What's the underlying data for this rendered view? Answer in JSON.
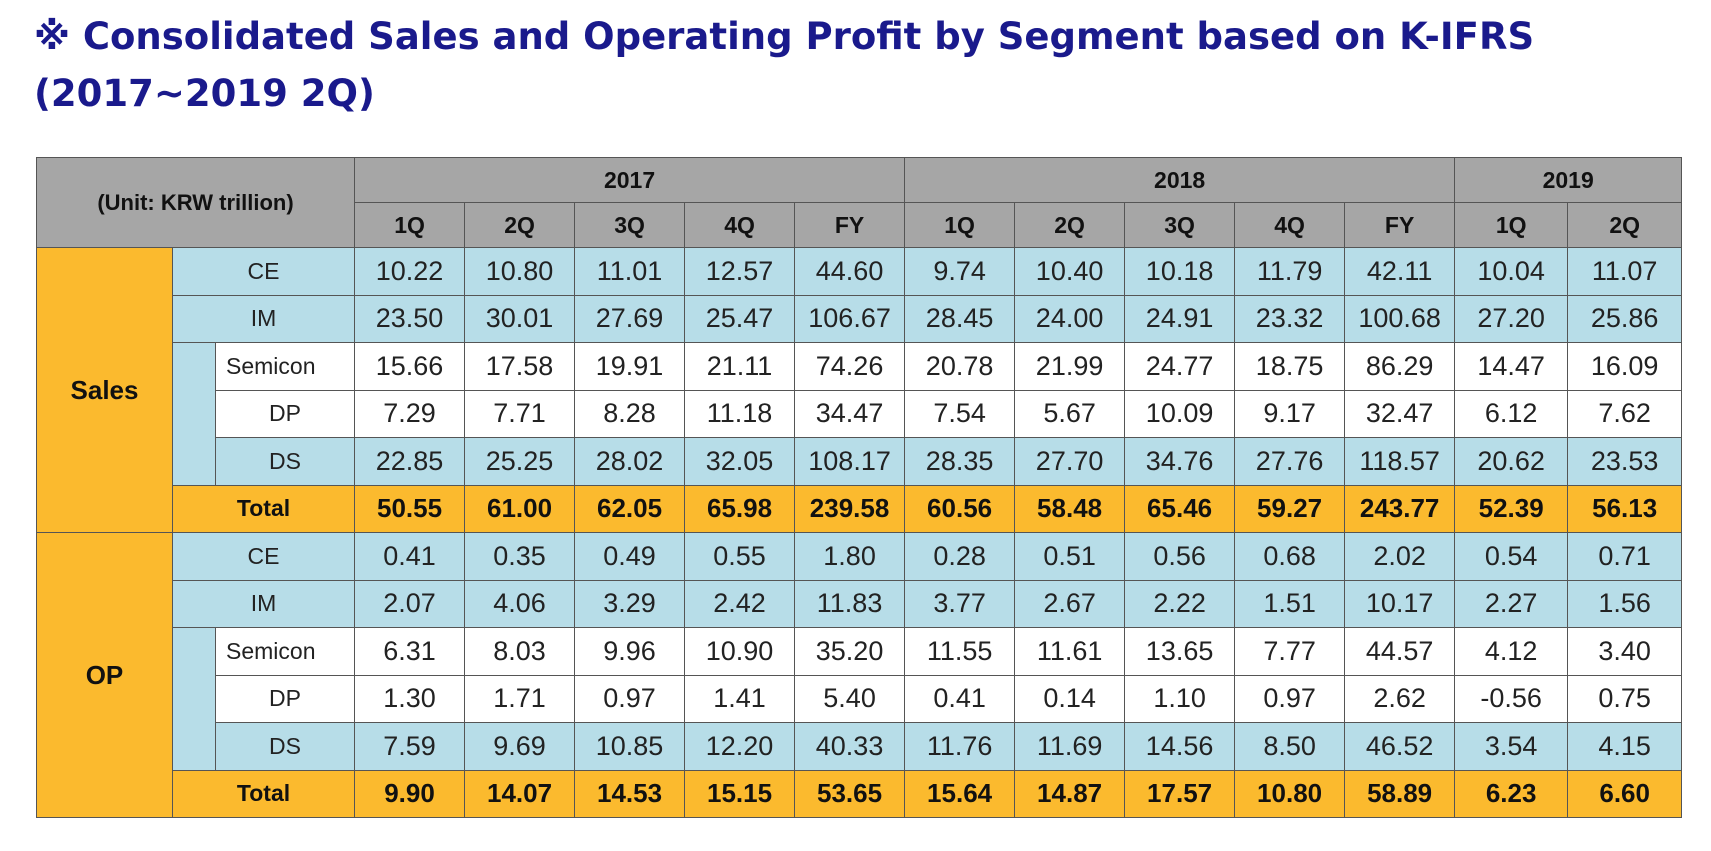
{
  "title": "※ Consolidated Sales and Operating Profit by Segment based on K-IFRS (2017~2019 2Q)",
  "table": {
    "unit_label": "(Unit: KRW trillion)",
    "years": [
      {
        "label": "2017",
        "span": 5
      },
      {
        "label": "2018",
        "span": 5
      },
      {
        "label": "2019",
        "span": 2
      }
    ],
    "quarters": [
      "1Q",
      "2Q",
      "3Q",
      "4Q",
      "FY",
      "1Q",
      "2Q",
      "3Q",
      "4Q",
      "FY",
      "1Q",
      "2Q"
    ],
    "groups": [
      {
        "label": "Sales",
        "rows": [
          {
            "segment": "CE",
            "kind": "main",
            "values": [
              "10.22",
              "10.80",
              "11.01",
              "12.57",
              "44.60",
              "9.74",
              "10.40",
              "10.18",
              "11.79",
              "42.11",
              "10.04",
              "11.07"
            ]
          },
          {
            "segment": "IM",
            "kind": "main",
            "values": [
              "23.50",
              "30.01",
              "27.69",
              "25.47",
              "106.67",
              "28.45",
              "24.00",
              "24.91",
              "23.32",
              "100.68",
              "27.20",
              "25.86"
            ]
          },
          {
            "segment": "Semicon",
            "kind": "sub",
            "values": [
              "15.66",
              "17.58",
              "19.91",
              "21.11",
              "74.26",
              "20.78",
              "21.99",
              "24.77",
              "18.75",
              "86.29",
              "14.47",
              "16.09"
            ]
          },
          {
            "segment": "DP",
            "kind": "sub",
            "values": [
              "7.29",
              "7.71",
              "8.28",
              "11.18",
              "34.47",
              "7.54",
              "5.67",
              "10.09",
              "9.17",
              "32.47",
              "6.12",
              "7.62"
            ]
          },
          {
            "segment": "DS",
            "kind": "ds",
            "values": [
              "22.85",
              "25.25",
              "28.02",
              "32.05",
              "108.17",
              "28.35",
              "27.70",
              "34.76",
              "27.76",
              "118.57",
              "20.62",
              "23.53"
            ]
          },
          {
            "segment": "Total",
            "kind": "total",
            "values": [
              "50.55",
              "61.00",
              "62.05",
              "65.98",
              "239.58",
              "60.56",
              "58.48",
              "65.46",
              "59.27",
              "243.77",
              "52.39",
              "56.13"
            ]
          }
        ]
      },
      {
        "label": "OP",
        "rows": [
          {
            "segment": "CE",
            "kind": "main",
            "values": [
              "0.41",
              "0.35",
              "0.49",
              "0.55",
              "1.80",
              "0.28",
              "0.51",
              "0.56",
              "0.68",
              "2.02",
              "0.54",
              "0.71"
            ]
          },
          {
            "segment": "IM",
            "kind": "main",
            "values": [
              "2.07",
              "4.06",
              "3.29",
              "2.42",
              "11.83",
              "3.77",
              "2.67",
              "2.22",
              "1.51",
              "10.17",
              "2.27",
              "1.56"
            ]
          },
          {
            "segment": "Semicon",
            "kind": "sub",
            "values": [
              "6.31",
              "8.03",
              "9.96",
              "10.90",
              "35.20",
              "11.55",
              "11.61",
              "13.65",
              "7.77",
              "44.57",
              "4.12",
              "3.40"
            ]
          },
          {
            "segment": "DP",
            "kind": "sub",
            "values": [
              "1.30",
              "1.71",
              "0.97",
              "1.41",
              "5.40",
              "0.41",
              "0.14",
              "1.10",
              "0.97",
              "2.62",
              "-0.56",
              "0.75"
            ]
          },
          {
            "segment": "DS",
            "kind": "ds",
            "values": [
              "7.59",
              "9.69",
              "10.85",
              "12.20",
              "40.33",
              "11.76",
              "11.69",
              "14.56",
              "8.50",
              "46.52",
              "3.54",
              "4.15"
            ]
          },
          {
            "segment": "Total",
            "kind": "total",
            "values": [
              "9.90",
              "14.07",
              "14.53",
              "15.15",
              "53.65",
              "15.64",
              "14.87",
              "17.57",
              "10.80",
              "58.89",
              "6.23",
              "6.60"
            ]
          }
        ]
      }
    ]
  },
  "colors": {
    "title": "#1a1a8c",
    "header_gray": "#a6a6a6",
    "group_orange": "#fbba2e",
    "row_blue": "#b7dde8",
    "row_white": "#ffffff"
  }
}
